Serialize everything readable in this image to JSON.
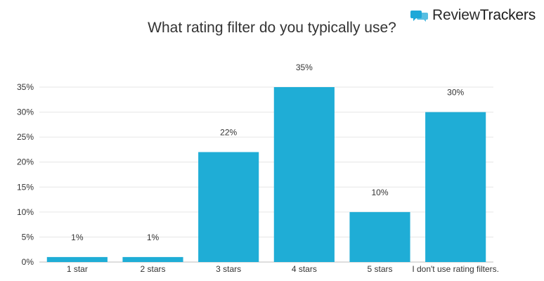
{
  "brand": {
    "name_part1": "Review",
    "name_part2": "Trackers",
    "accent": "#1fa8d8"
  },
  "chart_data": {
    "type": "bar",
    "title": "What rating filter do you typically use?",
    "categories": [
      "1 star",
      "2 stars",
      "3 stars",
      "4 stars",
      "5 stars",
      "I don't use rating filters."
    ],
    "values": [
      1,
      1,
      22,
      35,
      10,
      30
    ],
    "value_labels": [
      "1%",
      "1%",
      "22%",
      "35%",
      "10%",
      "30%"
    ],
    "yticks": [
      0,
      5,
      10,
      15,
      20,
      25,
      30,
      35
    ],
    "ytick_labels": [
      "0%",
      "5%",
      "10%",
      "15%",
      "20%",
      "25%",
      "30%",
      "35%"
    ],
    "ylim": [
      0,
      35
    ],
    "xlabel": "",
    "ylabel": "",
    "grid": true,
    "bar_color": "#1fadd6"
  }
}
